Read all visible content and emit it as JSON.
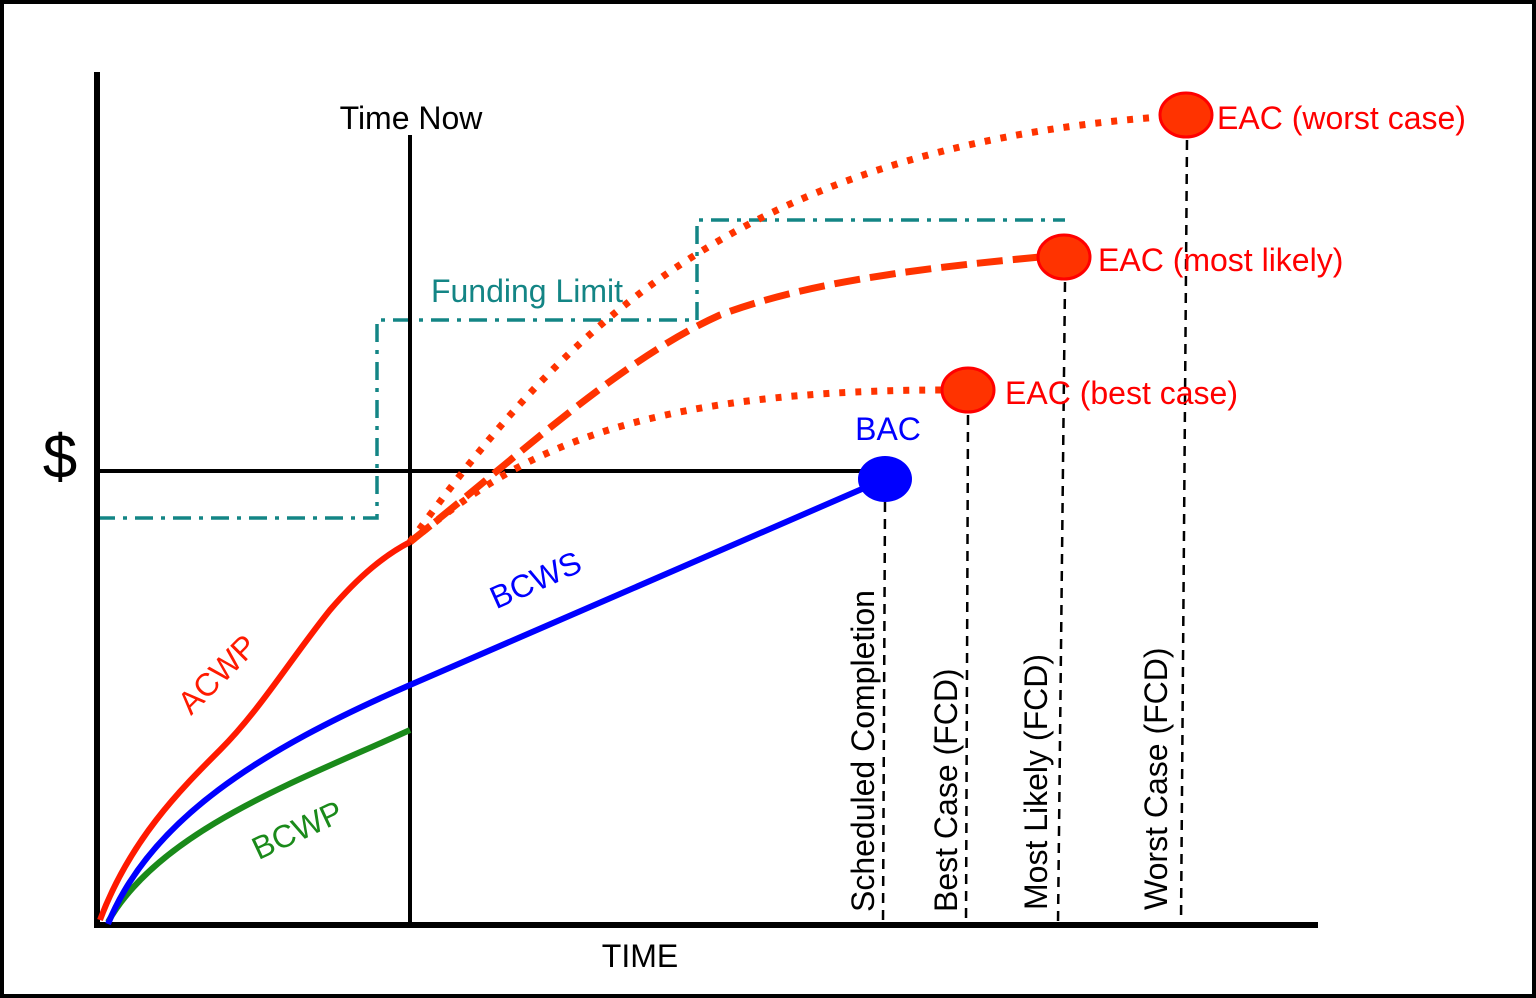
{
  "labels": {
    "y_axis": "$",
    "x_axis": "TIME",
    "time_now": "Time Now",
    "funding_limit": "Funding Limit",
    "bac": "BAC",
    "acwp": "ACWP",
    "bcws": "BCWS",
    "bcwp": "BCWP",
    "eac_worst": "EAC (worst case)",
    "eac_most_likely": "EAC (most likely)",
    "eac_best": "EAC (best case)",
    "scheduled_completion": "Scheduled Completion",
    "best_case_fcd": "Best Case (FCD)",
    "most_likely_fcd": "Most Likely (FCD)",
    "worst_case_fcd": "Worst Case (FCD)"
  },
  "colors": {
    "acwp": "#ff1a00",
    "eac": "#ff3300",
    "eac_outline": "#ff0000",
    "bcws": "#0000ff",
    "bcwp": "#1a8a1a",
    "funding_limit": "#138585",
    "axes": "#000000"
  }
}
